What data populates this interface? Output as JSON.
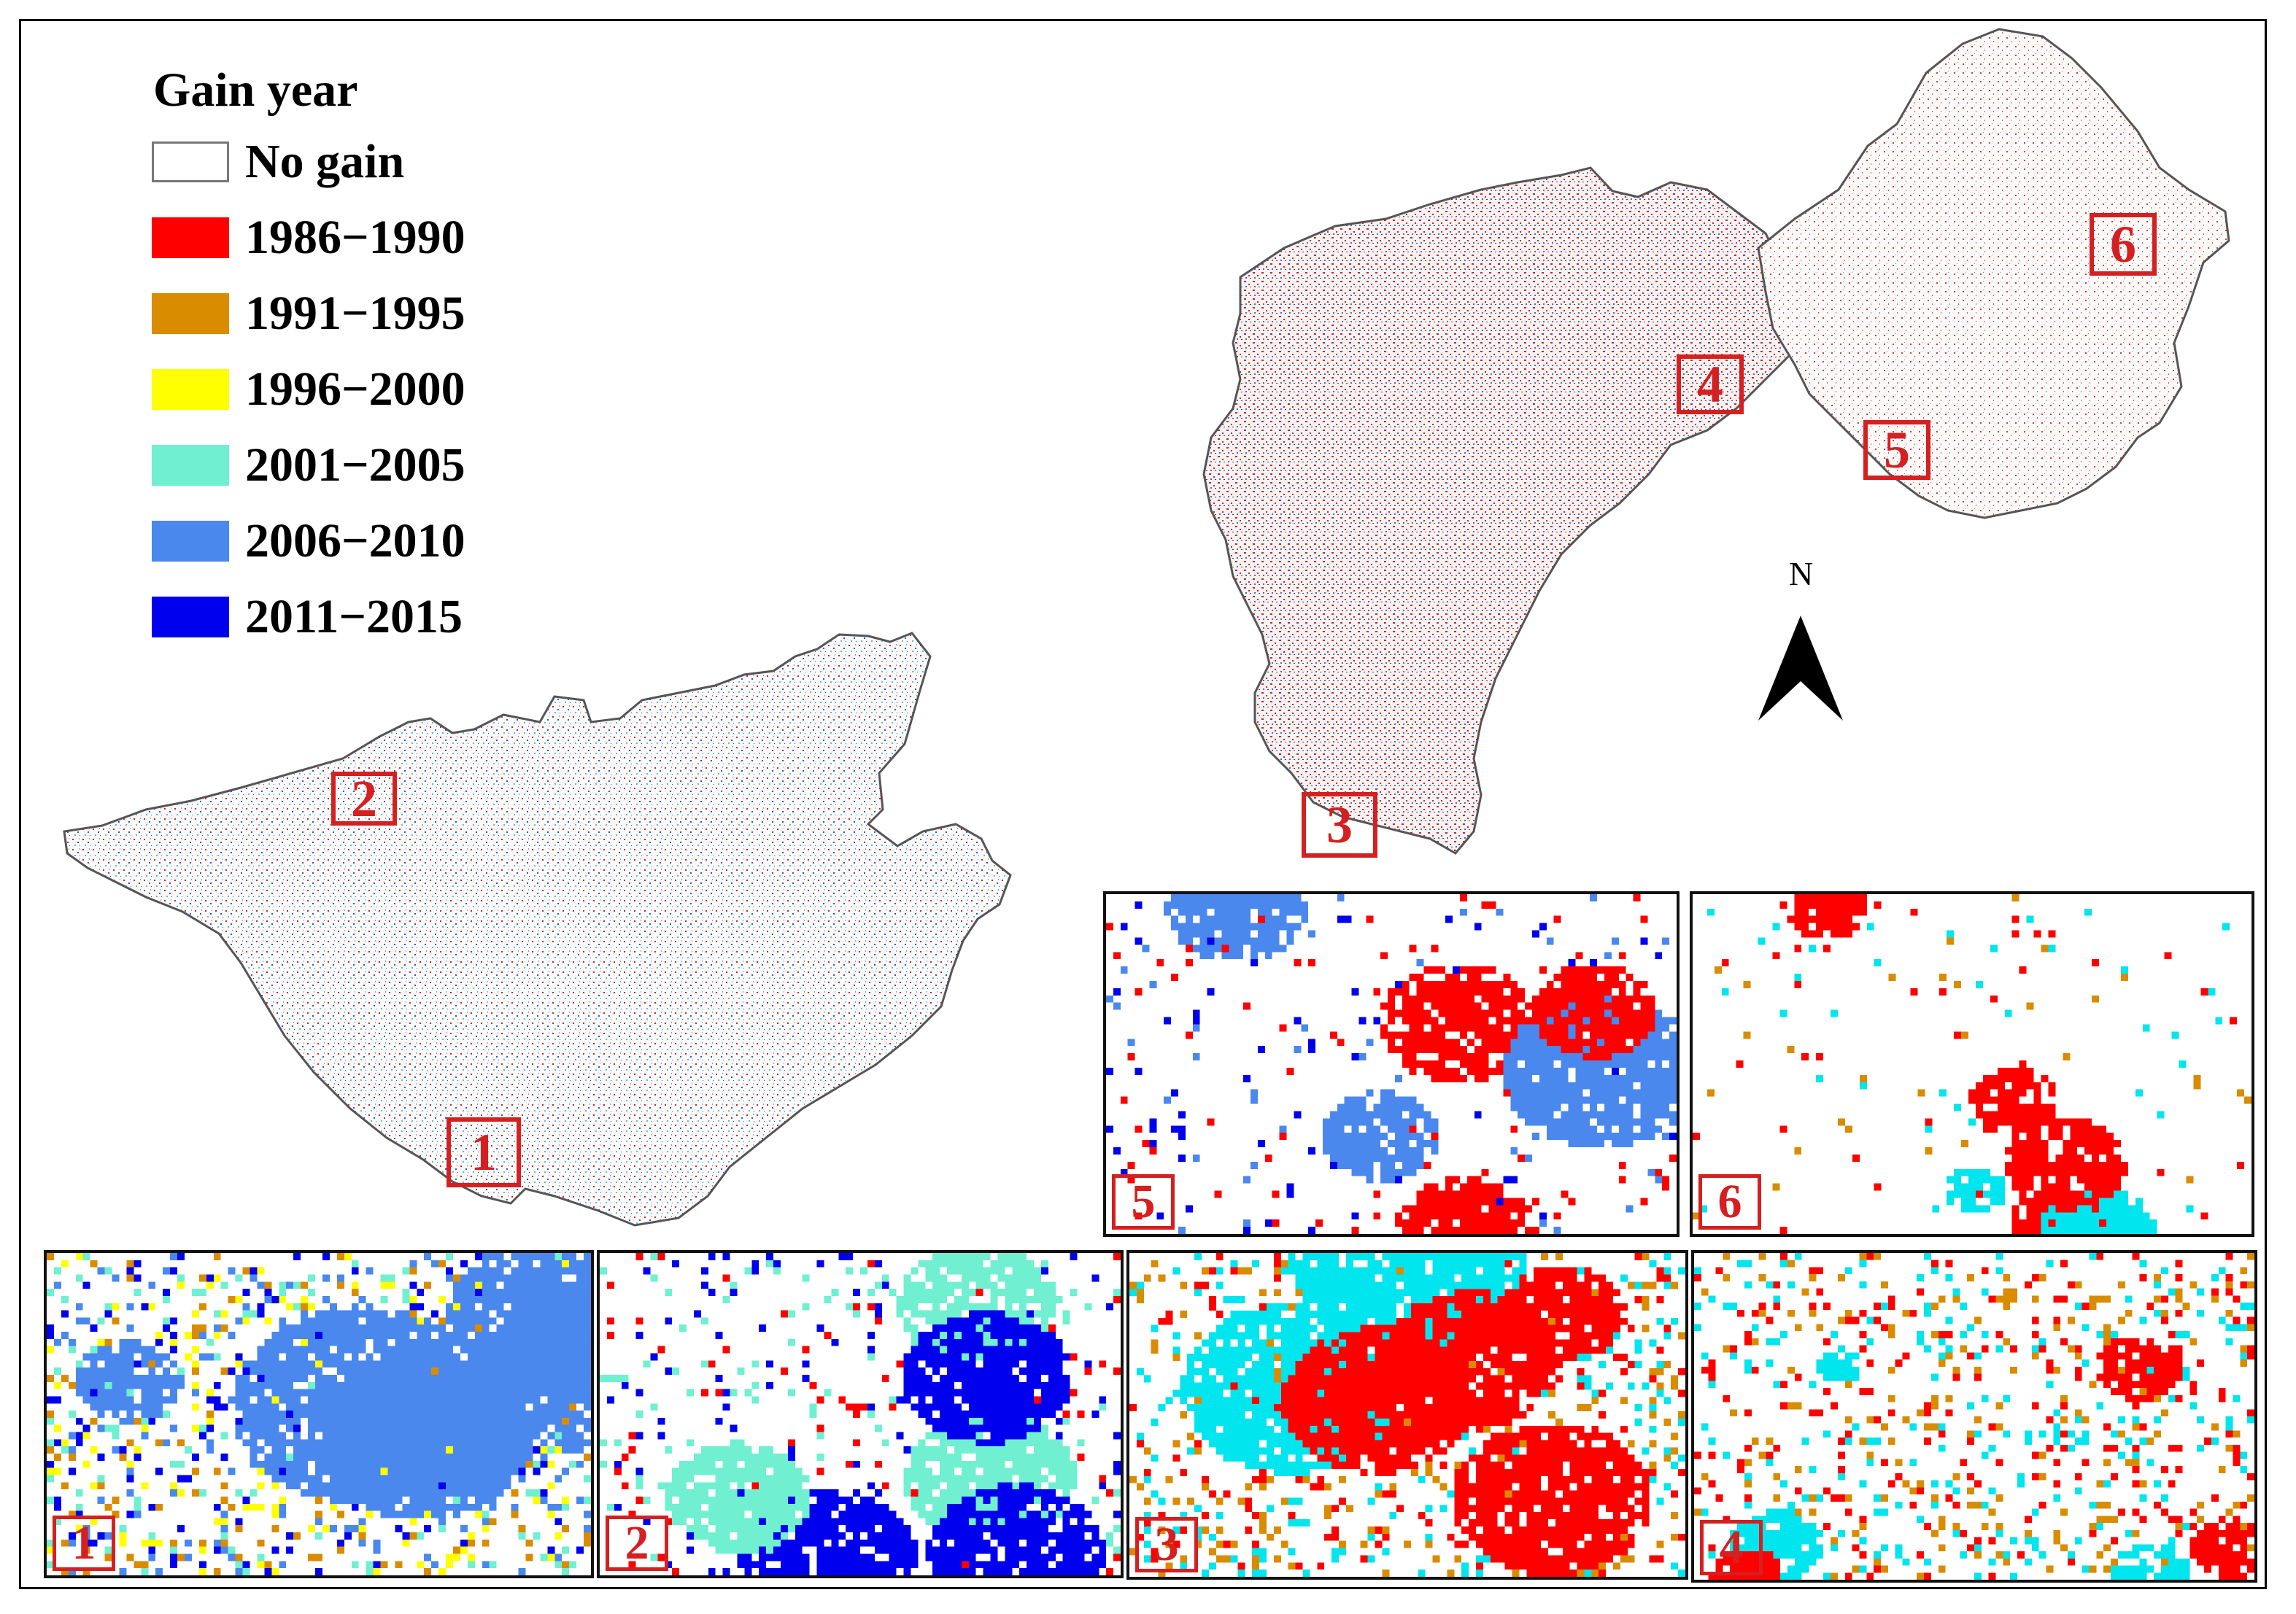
{
  "legend": {
    "title": "Gain year",
    "items": [
      {
        "label": "No gain",
        "color": "#ffffff"
      },
      {
        "label": "1986−1990",
        "color": "#ff0000"
      },
      {
        "label": "1991−1995",
        "color": "#d98c00"
      },
      {
        "label": "1996−2000",
        "color": "#ffff00"
      },
      {
        "label": "2001−2005",
        "color": "#70f0d0"
      },
      {
        "label": "2006−2010",
        "color": "#4a88ee"
      },
      {
        "label": "2011−2015",
        "color": "#0000ee"
      }
    ]
  },
  "north_arrow": {
    "label": "N"
  },
  "map_markers": [
    "1",
    "2",
    "3",
    "4",
    "5",
    "6"
  ],
  "inset_panels": [
    {
      "label": "5",
      "dominant": [
        "#ff0000",
        "#4a88ee",
        "#0000ee"
      ]
    },
    {
      "label": "6",
      "dominant": [
        "#ff0000",
        "#00e5ee",
        "#d98c00"
      ]
    },
    {
      "label": "1",
      "dominant": [
        "#4a88ee",
        "#0000ee",
        "#70f0d0",
        "#d98c00",
        "#ffff00"
      ]
    },
    {
      "label": "2",
      "dominant": [
        "#70f0d0",
        "#0000ee",
        "#ff0000"
      ]
    },
    {
      "label": "3",
      "dominant": [
        "#ff0000",
        "#00e5ee",
        "#d98c00"
      ]
    },
    {
      "label": "4",
      "dominant": [
        "#ff0000",
        "#00e5ee",
        "#d98c00"
      ]
    }
  ]
}
